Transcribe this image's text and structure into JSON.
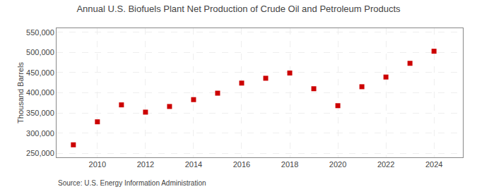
{
  "chart_data": {
    "type": "scatter",
    "title": "Annual U.S. Biofuels Plant Net Production of Crude Oil and Petroleum Products",
    "ylabel": "Thousand Barrels",
    "annotations": [
      "Source: U.S. Energy Information Administration"
    ],
    "x": [
      2009,
      2010,
      2011,
      2012,
      2013,
      2014,
      2015,
      2016,
      2017,
      2018,
      2019,
      2020,
      2021,
      2022,
      2023,
      2024
    ],
    "values": [
      271000,
      328000,
      370000,
      352000,
      366000,
      383000,
      399000,
      424000,
      436000,
      449000,
      410000,
      368000,
      415000,
      439000,
      473000,
      503000
    ],
    "color": "#cc0000",
    "marker": "square",
    "xlim": [
      2008.3,
      2025.2
    ],
    "xticks": [
      2010,
      2012,
      2014,
      2016,
      2018,
      2020,
      2022,
      2024
    ],
    "ylim": [
      240000,
      560000
    ],
    "yticks": [
      {
        "value": 250000,
        "label": "250,000"
      },
      {
        "value": 300000,
        "label": "300,000"
      },
      {
        "value": 350000,
        "label": "350,000"
      },
      {
        "value": 400000,
        "label": "400,000"
      },
      {
        "value": 450000,
        "label": "450,000"
      },
      {
        "value": 500000,
        "label": "500,000"
      },
      {
        "value": 550000,
        "label": "550,000"
      }
    ],
    "grid": true
  }
}
